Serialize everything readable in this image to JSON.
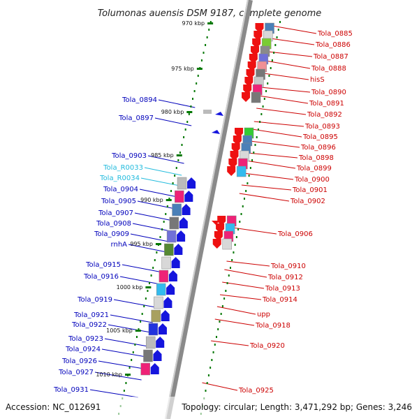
{
  "header": {
    "title": "Tolumonas auensis DSM 9187, complete genome"
  },
  "footer": {
    "accession": "Accession: NC_012691",
    "summary": "Topology: circular; Length: 3,471,292 bp; Genes: 3,246"
  },
  "colors": {
    "plus_label": "#cc0000",
    "minus_label": "#0000bb",
    "rna_label": "#22bbdd",
    "ticks": "#007700",
    "backbone": "#8a8a8a"
  },
  "ticks": [
    "970 kbp",
    "975 kbp",
    "980 kbp",
    "985 kbp",
    "990 kbp",
    "995 kbp",
    "1000 kbp",
    "1005 kbp",
    "1010 kbp"
  ],
  "labels_right": [
    "Tola_0885",
    "Tola_0886",
    "Tola_0887",
    "Tola_0888",
    "hisS",
    "Tola_0890",
    "Tola_0891",
    "Tola_0892",
    "Tola_0893",
    "Tola_0895",
    "Tola_0896",
    "Tola_0898",
    "Tola_0899",
    "Tola_0900",
    "Tola_0901",
    "Tola_0902",
    "Tola_0906",
    "Tola_0910",
    "Tola_0912",
    "Tola_0913",
    "Tola_0914",
    "upp",
    "Tola_0918",
    "Tola_0920",
    "Tola_0925"
  ],
  "labels_left": [
    "Tola_0894",
    "Tola_0897",
    "Tola_0903",
    "Tola_R0033",
    "Tola_R0034",
    "Tola_0904",
    "Tola_0905",
    "Tola_0907",
    "Tola_0908",
    "Tola_0909",
    "rnhA",
    "Tola_0915",
    "Tola_0916",
    "Tola_0919",
    "Tola_0921",
    "Tola_0922",
    "Tola_0923",
    "Tola_0924",
    "Tola_0926",
    "Tola_0927",
    "Tola_0931"
  ],
  "rna_labels": [
    "Tola_R0033",
    "Tola_R0034"
  ],
  "right_genes": [
    {
      "c": "#4a80b8"
    },
    {
      "c": "#d8d8d8"
    },
    {
      "c": "#7acc33"
    },
    {
      "c": "#8a8a8a"
    },
    {
      "c": "#7070d8"
    },
    {
      "c": "#f08f95"
    },
    {
      "c": "#777777"
    },
    {
      "c": "#c8c8c8"
    },
    {
      "c": "#ee2277"
    },
    {
      "c": "#777777"
    },
    {
      "c": "#33cc33"
    },
    {
      "c": "#4a80b8"
    },
    {
      "c": "#4a80b8"
    },
    {
      "c": "#d8d8d8"
    },
    {
      "c": "#ee2277"
    },
    {
      "c": "#33bbee"
    },
    {
      "c": "#ee2277"
    },
    {
      "c": "#33bbee"
    },
    {
      "c": "#ee2277"
    },
    {
      "c": "#d8d8d8"
    }
  ],
  "left_genes": [
    {
      "c": "#bbbbbb"
    },
    {
      "c": "#ee2277"
    },
    {
      "c": "#4a80b8"
    },
    {
      "c": "#777777"
    },
    {
      "c": "#7070d8"
    },
    {
      "c": "#558833"
    },
    {
      "c": "#d8d8d8"
    },
    {
      "c": "#ee2277"
    },
    {
      "c": "#33bbee"
    },
    {
      "c": "#d8d8d8"
    },
    {
      "c": "#a8a060"
    },
    {
      "c": "#2233dd"
    },
    {
      "c": "#bbbbbb"
    },
    {
      "c": "#777777"
    },
    {
      "c": "#ee2277"
    }
  ]
}
